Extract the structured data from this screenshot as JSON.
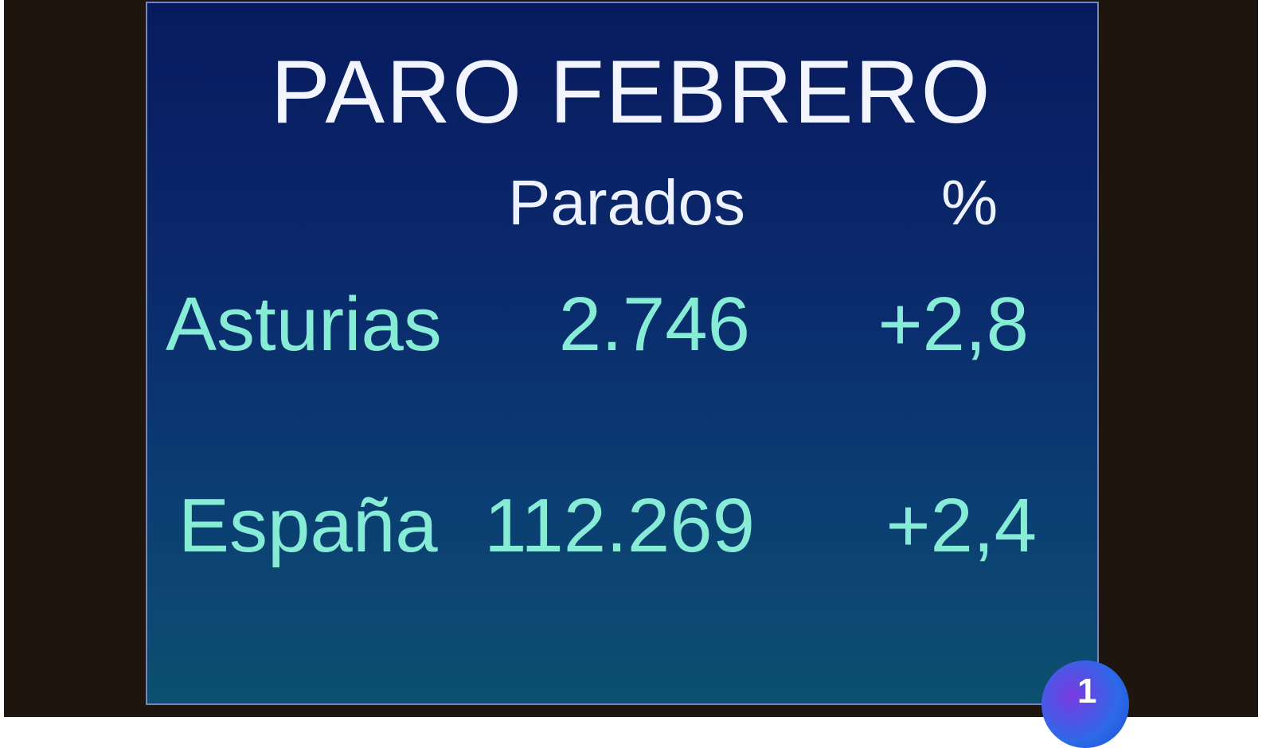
{
  "title": "PARO FEBRERO",
  "columns": [
    "Parados",
    "%"
  ],
  "rows": [
    {
      "region": "Asturias",
      "parados": "2.746",
      "percent": "+2,8"
    },
    {
      "region": "España",
      "parados": "112.269",
      "percent": "+2,4"
    }
  ],
  "channel_logo": "1",
  "colors": {
    "panel_top": "#081a5e",
    "panel_bottom": "#0c5070",
    "row_text": "#86ecd6",
    "header_text": "#eef2ff"
  }
}
